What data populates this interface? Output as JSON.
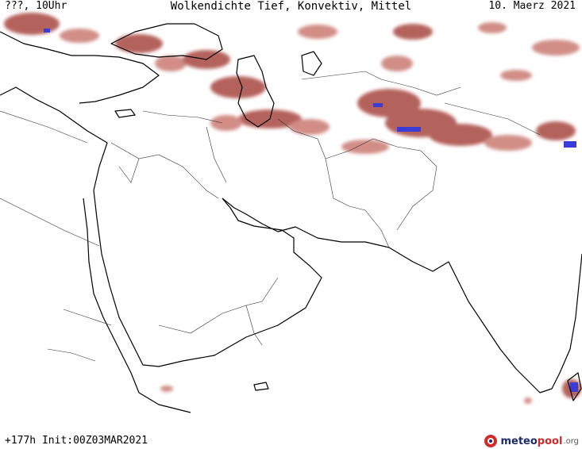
{
  "header": {
    "left": "???, 10Uhr",
    "title": "Wolkendichte  Tief, Konvektiv, Mittel",
    "right": "10. Maerz 2021"
  },
  "footer": {
    "init": "+177h Init:00Z03MAR2021",
    "logo": {
      "prefix": "meteo",
      "accent": "pool",
      "tld": ".org"
    }
  },
  "colors": {
    "cloud": "#a8473f",
    "cloud_light": "#c97a72",
    "cloud_dense": "#3b3bd8",
    "coast": "#000000",
    "border": "#333333",
    "logo_pool": "#d02a2a",
    "logo_meteo": "#1b2b6b"
  }
}
